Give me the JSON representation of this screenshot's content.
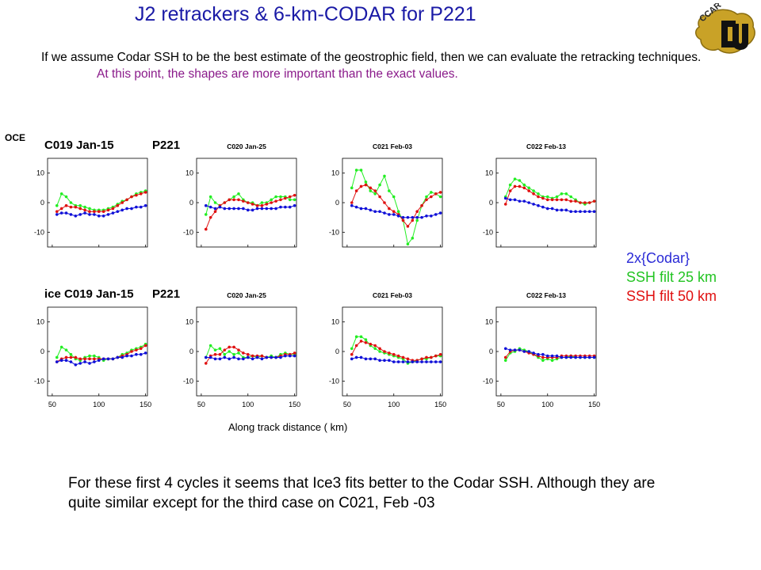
{
  "title": "J2 retrackers & 6-km-CODAR for P221",
  "intro": {
    "text": "If we assume Codar SSH to be the best estimate of the geostrophic field, then we can evaluate the retracking techniques.",
    "highlight": "At this point,  the shapes are more important than the exact values."
  },
  "logo": {
    "text": "CCAR"
  },
  "legend": {
    "items": [
      {
        "label": "2x{Codar}",
        "color": "#2a2ad6"
      },
      {
        "label": "SSH filt 25 km",
        "color": "#22c422"
      },
      {
        "label": "SSH  filt 50 km",
        "color": "#e01010"
      }
    ]
  },
  "xlabel": "Along track distance ( km)",
  "footer": "For these first 4 cycles it seems that Ice3 fits better to the Codar SSH. Although they are quite similar except for the third case on C021, Feb -03",
  "row_labels": [
    "OCE",
    "ice"
  ],
  "colors": {
    "blue": "#1010d8",
    "green": "#22ee22",
    "red": "#e01010",
    "title": "#1a1aa6"
  },
  "chart_data": [
    {
      "type": "line",
      "row": "OCE",
      "cycle": "C019",
      "date": "Jan-15",
      "pass": "P221",
      "title_prefix": "",
      "ylim": [
        -15,
        15
      ],
      "yticks": [
        10,
        0,
        -10
      ],
      "x": [
        55,
        60,
        65,
        70,
        75,
        80,
        85,
        90,
        95,
        100,
        105,
        110,
        115,
        120,
        125,
        130,
        135,
        140,
        145,
        150
      ],
      "series": [
        {
          "color": "green",
          "values": [
            -1,
            3,
            2,
            0,
            -1,
            -1,
            -1.5,
            -2,
            -2.5,
            -2.5,
            -2.5,
            -2,
            -1.5,
            -0.5,
            0.5,
            1,
            2,
            3,
            3.5,
            4
          ]
        },
        {
          "color": "red",
          "values": [
            -3,
            -2,
            -1,
            -1.5,
            -1.5,
            -2,
            -2.5,
            -3,
            -3,
            -3,
            -3,
            -2.5,
            -2,
            -1,
            0,
            1,
            2,
            2.5,
            3,
            3.5
          ]
        },
        {
          "color": "blue",
          "values": [
            -4,
            -3.5,
            -3.5,
            -4,
            -4.5,
            -4,
            -3.5,
            -4,
            -4,
            -4.5,
            -4.5,
            -4,
            -3.5,
            -3,
            -2.5,
            -2,
            -2,
            -1.5,
            -1.5,
            -1
          ]
        }
      ]
    },
    {
      "type": "line",
      "row": "OCE",
      "cycle": "C020",
      "date": "Jan-25",
      "pass": "",
      "title_prefix": "",
      "ylim": [
        -15,
        15
      ],
      "yticks": [
        10,
        0,
        -10
      ],
      "x": [
        55,
        60,
        65,
        70,
        75,
        80,
        85,
        90,
        95,
        100,
        105,
        110,
        115,
        120,
        125,
        130,
        135,
        140,
        145,
        150
      ],
      "series": [
        {
          "color": "green",
          "values": [
            -4,
            2,
            0,
            -1,
            0,
            1,
            2,
            3,
            1,
            0,
            0,
            -1,
            0,
            0,
            1,
            2,
            2,
            2,
            1,
            1
          ]
        },
        {
          "color": "red",
          "values": [
            -9,
            -5,
            -3,
            -1,
            0,
            1,
            1,
            1,
            0.5,
            0,
            -0.5,
            -1,
            -1,
            -0.5,
            0,
            0.5,
            1,
            1.5,
            2,
            2.5
          ]
        },
        {
          "color": "blue",
          "values": [
            -1,
            -1.5,
            -2,
            -1.5,
            -2,
            -2,
            -2,
            -2,
            -2,
            -2.5,
            -2.5,
            -2,
            -2,
            -2,
            -2,
            -2,
            -1.5,
            -1.5,
            -1.5,
            -1
          ]
        }
      ]
    },
    {
      "type": "line",
      "row": "OCE",
      "cycle": "C021",
      "date": "Feb-03",
      "pass": "",
      "title_prefix": "",
      "ylim": [
        -15,
        15
      ],
      "yticks": [
        10,
        0,
        -10
      ],
      "x": [
        55,
        60,
        65,
        70,
        75,
        80,
        85,
        90,
        95,
        100,
        105,
        110,
        115,
        120,
        125,
        130,
        135,
        140,
        145,
        150
      ],
      "series": [
        {
          "color": "green",
          "values": [
            5,
            11,
            11,
            7,
            4,
            3,
            6,
            9,
            4,
            2,
            -3,
            -6,
            -14,
            -12,
            -6,
            -1,
            2,
            3.5,
            3,
            2
          ]
        },
        {
          "color": "red",
          "values": [
            0,
            4,
            5.5,
            6,
            5,
            4,
            2,
            0,
            -2,
            -3,
            -4,
            -6,
            -8,
            -6,
            -3,
            -1,
            1,
            2,
            3,
            3.5
          ]
        },
        {
          "color": "blue",
          "values": [
            -1,
            -1.5,
            -2,
            -2,
            -2.5,
            -3,
            -3,
            -3.5,
            -4,
            -4,
            -4.5,
            -5,
            -5,
            -5,
            -5,
            -5,
            -4.5,
            -4.5,
            -4,
            -3.5
          ]
        }
      ]
    },
    {
      "type": "line",
      "row": "OCE",
      "cycle": "C022",
      "date": "Feb-13",
      "pass": "",
      "title_prefix": "",
      "ylim": [
        -15,
        15
      ],
      "yticks": [
        10,
        0,
        -10
      ],
      "x": [
        55,
        60,
        65,
        70,
        75,
        80,
        85,
        90,
        95,
        100,
        105,
        110,
        115,
        120,
        125,
        130,
        135,
        140,
        145,
        150
      ],
      "series": [
        {
          "color": "green",
          "values": [
            2,
            6,
            8,
            7.5,
            6,
            5,
            4,
            3,
            2,
            2,
            1.5,
            2,
            3,
            3,
            2,
            1,
            0,
            -0.5,
            0,
            0.5
          ]
        },
        {
          "color": "red",
          "values": [
            -0.5,
            4,
            5.5,
            5.5,
            5,
            4,
            3,
            2,
            1.5,
            1,
            1,
            1,
            1,
            1,
            0.5,
            0.5,
            0,
            0,
            0,
            0.5
          ]
        },
        {
          "color": "blue",
          "values": [
            1.5,
            1,
            1,
            0.5,
            0.5,
            0,
            -0.5,
            -1,
            -1.5,
            -2,
            -2,
            -2.5,
            -2.5,
            -2.5,
            -3,
            -3,
            -3,
            -3,
            -3,
            -3
          ]
        }
      ]
    },
    {
      "type": "line",
      "row": "ice",
      "cycle": "C019",
      "date": "Jan-15",
      "pass": "P221",
      "title_prefix": "ice",
      "ylim": [
        -15,
        15
      ],
      "yticks": [
        10,
        0,
        -10
      ],
      "x": [
        55,
        60,
        65,
        70,
        75,
        80,
        85,
        90,
        95,
        100,
        105,
        110,
        115,
        120,
        125,
        130,
        135,
        140,
        145,
        150
      ],
      "series": [
        {
          "color": "green",
          "values": [
            -2,
            1.5,
            0.5,
            -1,
            -2.5,
            -3,
            -2,
            -1.5,
            -1.5,
            -2,
            -3,
            -2.5,
            -2.5,
            -2,
            -1,
            -0.5,
            0.5,
            1,
            1.5,
            2.5
          ]
        },
        {
          "color": "red",
          "values": [
            -3.5,
            -2.5,
            -2,
            -2,
            -2,
            -2.5,
            -2.5,
            -2.5,
            -2.5,
            -2.5,
            -2.5,
            -2.5,
            -2.5,
            -2,
            -1.5,
            -1,
            0,
            0.5,
            1,
            2
          ]
        },
        {
          "color": "blue",
          "values": [
            -3.5,
            -3,
            -3,
            -3.5,
            -4.5,
            -4,
            -3.5,
            -4,
            -3.5,
            -3,
            -2.5,
            -2.5,
            -2.5,
            -2,
            -2,
            -1.5,
            -1.5,
            -1,
            -1,
            -0.5
          ]
        }
      ]
    },
    {
      "type": "line",
      "row": "ice",
      "cycle": "C020",
      "date": "Jan-25",
      "pass": "",
      "title_prefix": "",
      "ylim": [
        -15,
        15
      ],
      "yticks": [
        10,
        0,
        -10
      ],
      "x": [
        55,
        60,
        65,
        70,
        75,
        80,
        85,
        90,
        95,
        100,
        105,
        110,
        115,
        120,
        125,
        130,
        135,
        140,
        145,
        150
      ],
      "series": [
        {
          "color": "green",
          "values": [
            -2,
            2,
            0.5,
            1,
            -1,
            0,
            -1,
            -0.5,
            -2,
            -2,
            -1.5,
            -2,
            -1.5,
            -2,
            -1.5,
            -2,
            -1,
            -0.5,
            -1,
            -1
          ]
        },
        {
          "color": "red",
          "values": [
            -4,
            -1.5,
            -1,
            -1,
            0.5,
            1.5,
            1.5,
            0.5,
            -0.5,
            -1,
            -1.5,
            -1.5,
            -1.5,
            -2,
            -2,
            -2,
            -1.5,
            -1,
            -1,
            -0.5
          ]
        },
        {
          "color": "blue",
          "values": [
            -2,
            -2,
            -2.5,
            -2.5,
            -2,
            -2.5,
            -2,
            -2.5,
            -2.5,
            -2,
            -2.5,
            -2,
            -2.5,
            -2,
            -2,
            -2,
            -2,
            -1.5,
            -1.5,
            -1.5
          ]
        }
      ]
    },
    {
      "type": "line",
      "row": "ice",
      "cycle": "C021",
      "date": "Feb-03",
      "pass": "",
      "title_prefix": "",
      "ylim": [
        -15,
        15
      ],
      "yticks": [
        10,
        0,
        -10
      ],
      "x": [
        55,
        60,
        65,
        70,
        75,
        80,
        85,
        90,
        95,
        100,
        105,
        110,
        115,
        120,
        125,
        130,
        135,
        140,
        145,
        150
      ],
      "series": [
        {
          "color": "green",
          "values": [
            1,
            5,
            5,
            4,
            2,
            1,
            0,
            -0.5,
            -1,
            -1.5,
            -2,
            -2.5,
            -4,
            -3.5,
            -3,
            -2.5,
            -2.5,
            -2,
            -1.5,
            -1.5
          ]
        },
        {
          "color": "red",
          "values": [
            -1,
            2,
            3.5,
            3,
            2.5,
            2,
            1,
            0,
            -0.5,
            -1,
            -1.5,
            -2,
            -2.5,
            -3,
            -3,
            -2.5,
            -2,
            -2,
            -1.5,
            -1
          ]
        },
        {
          "color": "blue",
          "values": [
            -2.5,
            -2,
            -2,
            -2.5,
            -2.5,
            -2.5,
            -3,
            -3,
            -3,
            -3.5,
            -3.5,
            -3.5,
            -3.5,
            -3.5,
            -3.5,
            -3.5,
            -3.5,
            -3.5,
            -3.5,
            -3.5
          ]
        }
      ]
    },
    {
      "type": "line",
      "row": "ice",
      "cycle": "C022",
      "date": "Feb-13",
      "pass": "",
      "title_prefix": "",
      "ylim": [
        -15,
        15
      ],
      "yticks": [
        10,
        0,
        -10
      ],
      "x": [
        55,
        60,
        65,
        70,
        75,
        80,
        85,
        90,
        95,
        100,
        105,
        110,
        115,
        120,
        125,
        130,
        135,
        140,
        145,
        150
      ],
      "series": [
        {
          "color": "green",
          "values": [
            -3,
            -0.5,
            0,
            1,
            0.5,
            0,
            -1,
            -2,
            -3,
            -2.5,
            -3,
            -2.5,
            -2,
            -2,
            -1.5,
            -2,
            -2,
            -2,
            -2,
            -2
          ]
        },
        {
          "color": "red",
          "values": [
            -2,
            0,
            0.5,
            0.5,
            0,
            -0.5,
            -1,
            -1.5,
            -2,
            -2,
            -2,
            -2,
            -1.5,
            -1.5,
            -1.5,
            -1.5,
            -1.5,
            -1.5,
            -1.5,
            -1.5
          ]
        },
        {
          "color": "blue",
          "values": [
            1,
            0.5,
            0.5,
            0.5,
            0,
            0,
            -0.5,
            -1,
            -1,
            -1.5,
            -1.5,
            -1.5,
            -2,
            -2,
            -2,
            -2,
            -2,
            -2,
            -2,
            -2
          ]
        }
      ]
    }
  ],
  "xticks": [
    50,
    100,
    150
  ]
}
